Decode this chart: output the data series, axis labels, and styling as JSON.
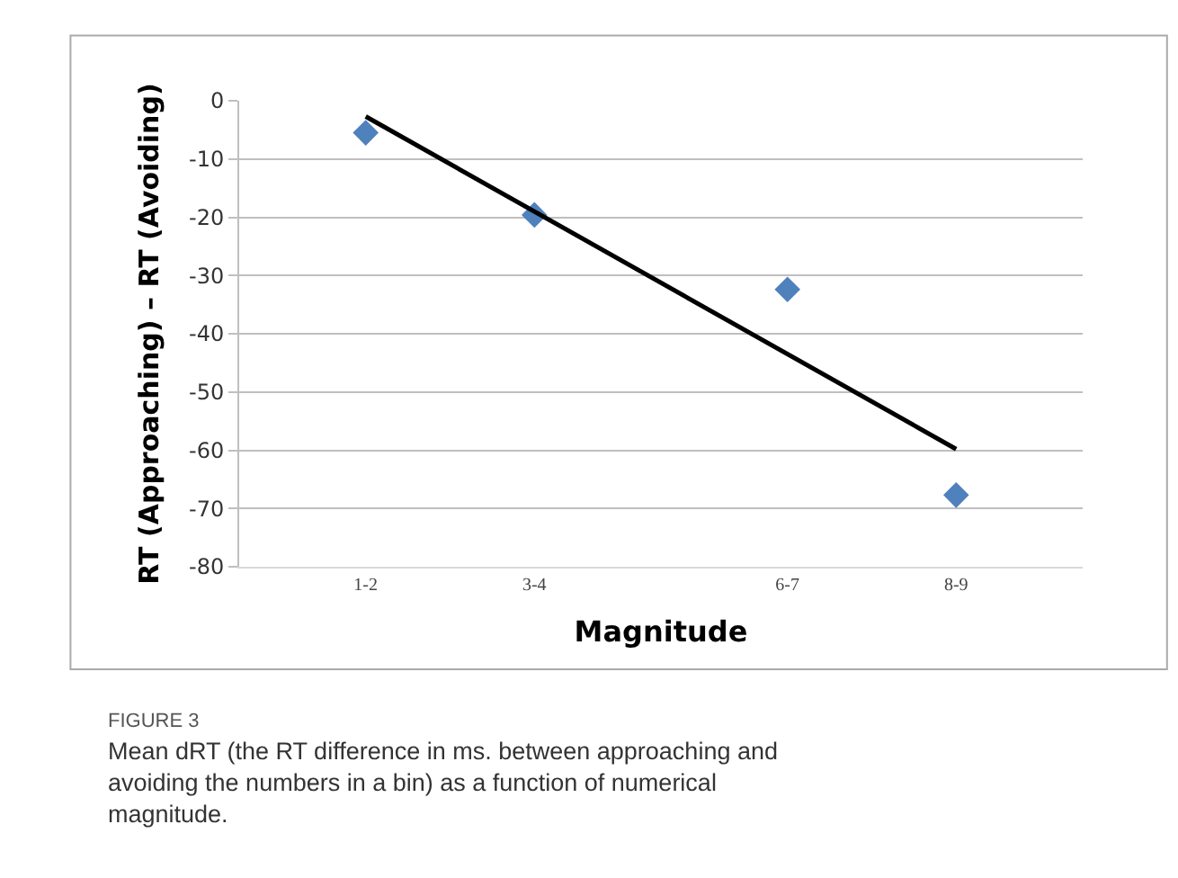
{
  "chart_data": {
    "type": "scatter",
    "xlabel": "Magnitude",
    "ylabel": "RT (Approaching) – RT (Avoiding)",
    "categories": [
      "1-2",
      null,
      "3-4",
      null,
      null,
      "6-7",
      null,
      "8-9"
    ],
    "ylim": [
      -80,
      0
    ],
    "yticks": [
      -80,
      -70,
      -60,
      -50,
      -40,
      -30,
      -20,
      -10,
      0
    ],
    "grid": "y",
    "series": [
      {
        "color": "#4f81bd",
        "marker": "diamond",
        "values": [
          -5.5,
          null,
          -19.6,
          null,
          null,
          -32.4,
          null,
          -67.7
        ]
      },
      {
        "type": "line",
        "marker": "none",
        "color": "#000000",
        "values": [
          -2.7,
          null,
          null,
          null,
          null,
          null,
          null,
          -59.8
        ]
      }
    ],
    "annotations": [
      "FIGURE 3",
      "Mean dRT (the RT difference in ms. between approaching and avoiding the numbers in a bin) as a function of numerical magnitude."
    ]
  }
}
